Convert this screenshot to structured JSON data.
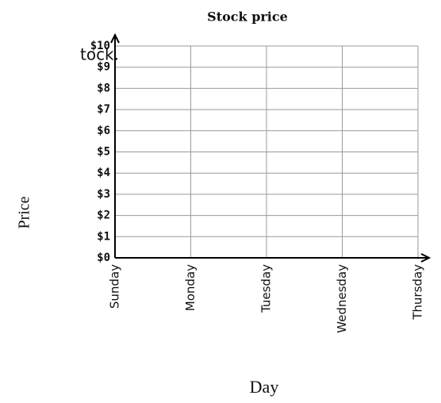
{
  "fragment": "tock.",
  "chart_data": {
    "type": "line",
    "title": "Stock price",
    "x_label": "Day",
    "y_label": "Price",
    "categories": [
      "Sunday",
      "Monday",
      "Tuesday",
      "Wednesday",
      "Thursday"
    ],
    "ylim": [
      0,
      10
    ],
    "yticks": [
      {
        "value": 0,
        "label": "$0"
      },
      {
        "value": 1,
        "label": "$1"
      },
      {
        "value": 2,
        "label": "$2"
      },
      {
        "value": 3,
        "label": "$3"
      },
      {
        "value": 4,
        "label": "$4"
      },
      {
        "value": 5,
        "label": "$5"
      },
      {
        "value": 6,
        "label": "$6"
      },
      {
        "value": 7,
        "label": "$7"
      },
      {
        "value": 8,
        "label": "$8"
      },
      {
        "value": 9,
        "label": "$9"
      },
      {
        "value": 10,
        "label": "$10"
      }
    ],
    "grid": true
  }
}
